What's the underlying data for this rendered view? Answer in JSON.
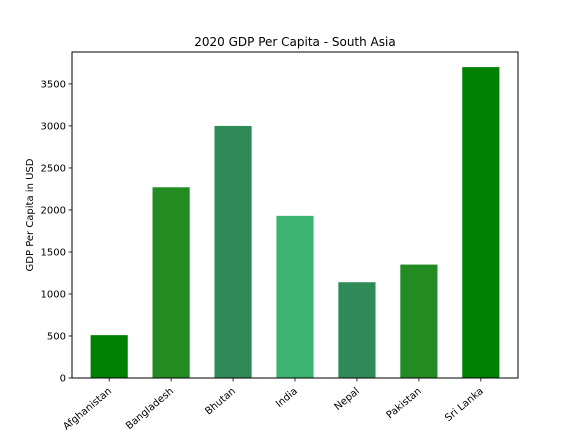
{
  "chart_data": {
    "type": "bar",
    "title": "2020 GDP Per Capita - South Asia",
    "xlabel": "",
    "ylabel": "GDP Per Capita in USD",
    "categories": [
      "Afghanistan",
      "Bangladesh",
      "Bhutan",
      "India",
      "Nepal",
      "Pakistan",
      "Sri Lanka"
    ],
    "values": [
      510,
      2270,
      3000,
      1930,
      1140,
      1350,
      3700
    ],
    "bar_colors": [
      "#008000",
      "#228B22",
      "#2E8B57",
      "#3CB371",
      "#2E8B57",
      "#228B22",
      "#008000"
    ],
    "ylim": [
      0,
      3880
    ],
    "yticks": [
      0,
      500,
      1000,
      1500,
      2000,
      2500,
      3000,
      3500
    ],
    "ytick_labels": [
      "0",
      "500",
      "1000",
      "1500",
      "2000",
      "2500",
      "3000",
      "3500"
    ],
    "grid": false,
    "legend": "none"
  }
}
